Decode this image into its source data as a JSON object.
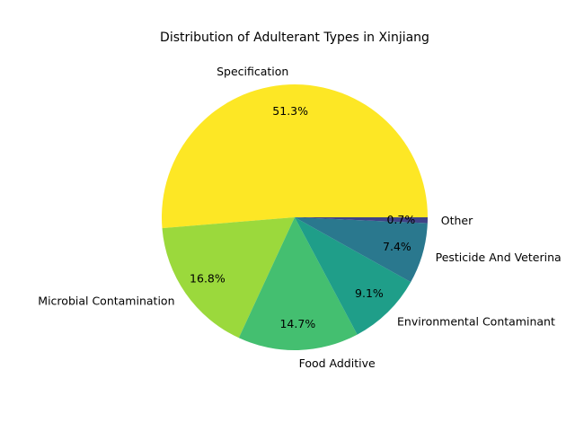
{
  "chart_data": {
    "type": "pie",
    "title": "Distribution of Adulterant Types in Xinjiang",
    "categories": [
      "Specification",
      "Microbial Contamination",
      "Food Additive",
      "Environmental Contaminant",
      "Pesticide And Veterinary Drug Residue",
      "Other"
    ],
    "visible_labels": [
      "Specification",
      "Microbial Contamination",
      "Food Additive",
      "Environmental Contaminant",
      "Pesticide And Veterina",
      "Other"
    ],
    "values": [
      51.3,
      16.8,
      14.7,
      9.1,
      7.4,
      0.7
    ],
    "percent_labels": [
      "51.3%",
      "16.8%",
      "14.7%",
      "9.1%",
      "7.4%",
      "0.7%"
    ],
    "colors": [
      "#fde725",
      "#9bd93c",
      "#44bf70",
      "#1f9e89",
      "#2a788e",
      "#404387"
    ],
    "start_angle_deg": 0,
    "direction": "counterclockwise",
    "legend": "none"
  }
}
